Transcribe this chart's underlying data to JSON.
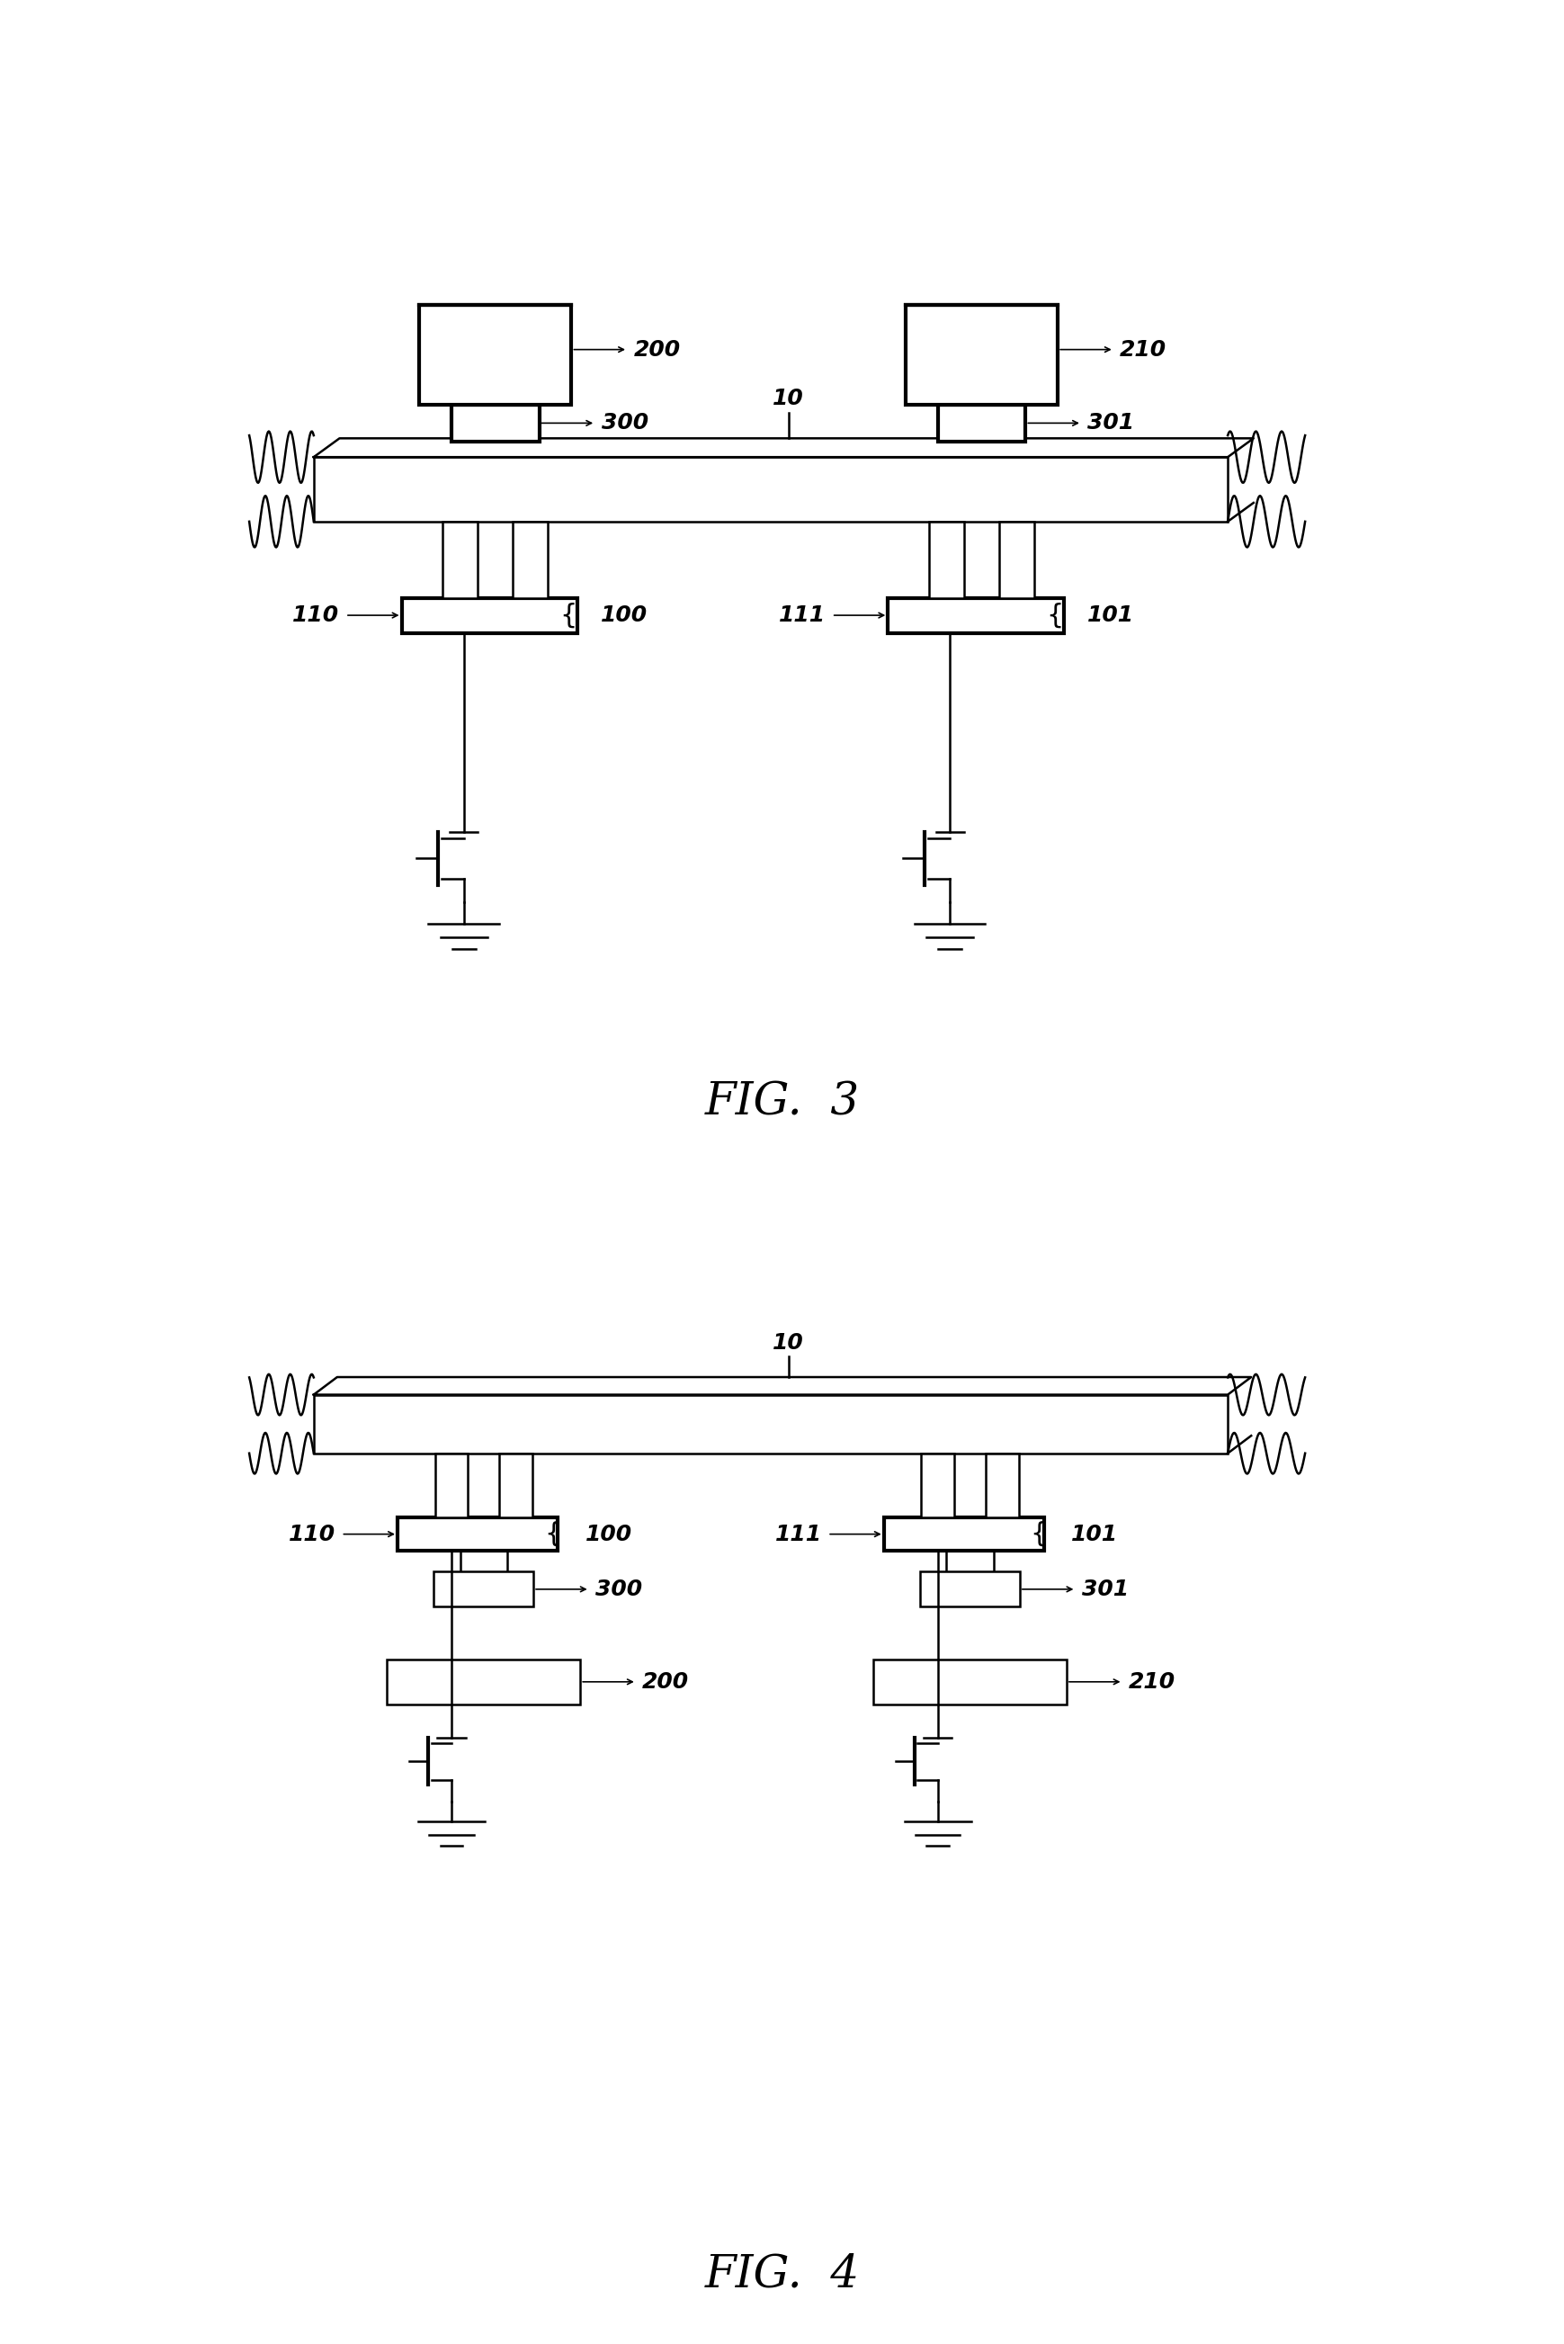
{
  "fig3_title": "FIG.  3",
  "fig4_title": "FIG.  4",
  "lw": 1.8,
  "lw_thick": 3.0,
  "bg_color": "#ffffff",
  "lc": "#000000",
  "label_fontsize": 18,
  "title_fontsize": 36
}
